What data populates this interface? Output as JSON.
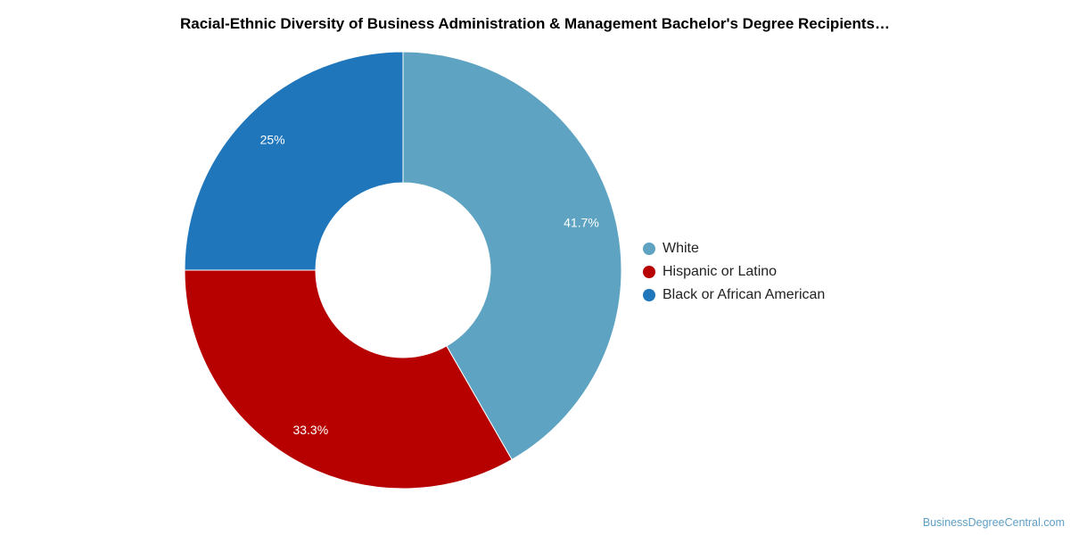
{
  "chart_data": {
    "type": "pie",
    "title": "Racial-Ethnic Diversity of Business Administration & Management Bachelor's Degree Recipients…",
    "donut": true,
    "legend_position": "right",
    "slices": [
      {
        "name": "White",
        "value": 41.7,
        "label": "41.7%",
        "color": "#5ea3c1"
      },
      {
        "name": "Hispanic or Latino",
        "value": 33.3,
        "label": "33.3%",
        "color": "#b70000"
      },
      {
        "name": "Black or African American",
        "value": 25,
        "label": "25%",
        "color": "#1f76bb"
      }
    ]
  },
  "watermark": "BusinessDegreeCentral.com"
}
